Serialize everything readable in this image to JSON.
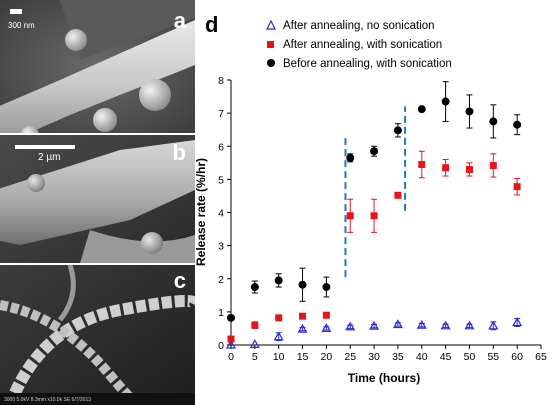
{
  "panels": {
    "a": {
      "letter": "a",
      "scale_label": "300 nm"
    },
    "b": {
      "letter": "b",
      "scale_label": "2 µm"
    },
    "c": {
      "letter": "c",
      "footer_text": "3000 5.0kV 8.3mm x10.0k SE 6/7/2013"
    },
    "d": {
      "letter": "d"
    }
  },
  "colors": {
    "no_sonication": "#2a2ad6",
    "with_sonication": "#e8141c",
    "before_annealing": "#000000",
    "dashed_lines": "#1f77c8"
  },
  "chart_data": {
    "type": "scatter",
    "xlabel": "Time (hours)",
    "ylabel": "Release rate (%/hr)",
    "xlim": [
      0,
      65
    ],
    "ylim": [
      0,
      8
    ],
    "x_ticks": [
      "0",
      "5",
      "10",
      "15",
      "20",
      "25",
      "30",
      "35",
      "40",
      "45",
      "50",
      "55",
      "60",
      "65"
    ],
    "y_ticks": [
      "0",
      "1",
      "2",
      "3",
      "4",
      "5",
      "6",
      "7",
      "8"
    ],
    "grid": false,
    "legend_position": "top",
    "series": [
      {
        "name": "After annealing, no sonication",
        "marker": "open-triangle",
        "x": [
          0,
          5,
          10,
          15,
          20,
          25,
          30,
          35,
          40,
          45,
          50,
          55,
          60
        ],
        "y": [
          0.0,
          0.02,
          0.25,
          0.48,
          0.5,
          0.55,
          0.57,
          0.62,
          0.6,
          0.58,
          0.58,
          0.58,
          0.68
        ],
        "err": [
          0.0,
          0.0,
          0.12,
          0.05,
          0.05,
          0.05,
          0.05,
          0.05,
          0.05,
          0.05,
          0.05,
          0.12,
          0.12
        ]
      },
      {
        "name": "After annealing, with sonication",
        "marker": "square",
        "x": [
          0,
          5,
          10,
          15,
          20,
          25,
          30,
          35,
          40,
          45,
          50,
          55,
          60
        ],
        "y": [
          0.18,
          0.6,
          0.82,
          0.87,
          0.9,
          3.9,
          3.9,
          4.52,
          5.45,
          5.35,
          5.3,
          5.42,
          4.78
        ],
        "err": [
          0.05,
          0.1,
          0.05,
          0.05,
          0.05,
          0.5,
          0.5,
          0.05,
          0.4,
          0.25,
          0.2,
          0.35,
          0.25
        ]
      },
      {
        "name": "Before annealing, with sonication",
        "marker": "circle",
        "x": [
          0,
          5,
          10,
          15,
          20,
          25,
          30,
          35,
          40,
          45,
          50,
          55,
          60
        ],
        "y": [
          0.82,
          1.75,
          1.95,
          1.82,
          1.75,
          5.65,
          5.85,
          6.48,
          7.12,
          7.35,
          7.05,
          6.75,
          6.65
        ],
        "err": [
          0.05,
          0.18,
          0.2,
          0.5,
          0.3,
          0.12,
          0.15,
          0.2,
          0.05,
          0.6,
          0.5,
          0.5,
          0.3
        ]
      }
    ],
    "dashed_markers": [
      {
        "x": 24,
        "y_range": [
          2.05,
          6.35
        ]
      },
      {
        "x": 36.5,
        "y_range": [
          4.05,
          7.2
        ]
      }
    ]
  }
}
